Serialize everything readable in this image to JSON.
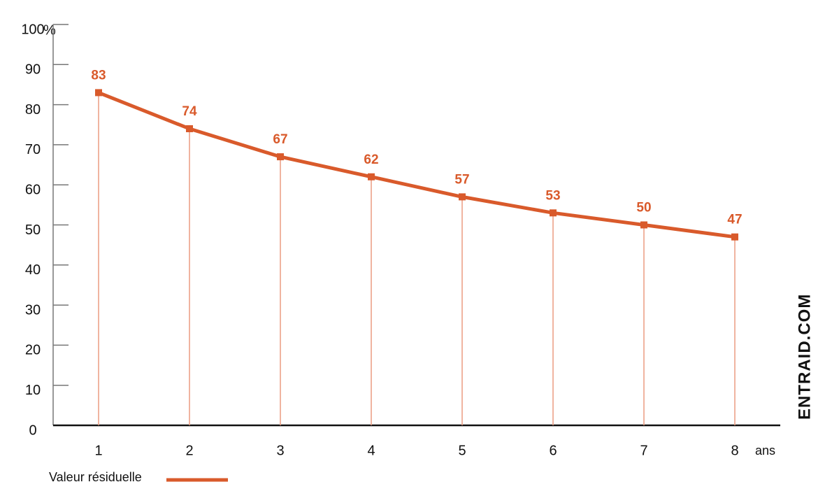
{
  "chart_data": {
    "type": "line",
    "x": [
      1,
      2,
      3,
      4,
      5,
      6,
      7,
      8
    ],
    "xlim": [
      0.5,
      8.5
    ],
    "xticks": [
      1,
      2,
      3,
      4,
      5,
      6,
      7,
      8
    ],
    "x_label": "ans",
    "ylim": [
      0,
      100
    ],
    "yticks": [
      0,
      10,
      20,
      30,
      40,
      50,
      60,
      70,
      80,
      90,
      100
    ],
    "y_label": "%",
    "series": [
      {
        "name": "Valeur résiduelle",
        "color": "#d95a2b",
        "values": [
          83,
          74,
          67,
          62,
          57,
          53,
          50,
          47
        ]
      }
    ],
    "drop_lines": true,
    "drop_line_color": "#eb9c80",
    "data_labels": true,
    "watermark": "ENTRAID.COM"
  }
}
